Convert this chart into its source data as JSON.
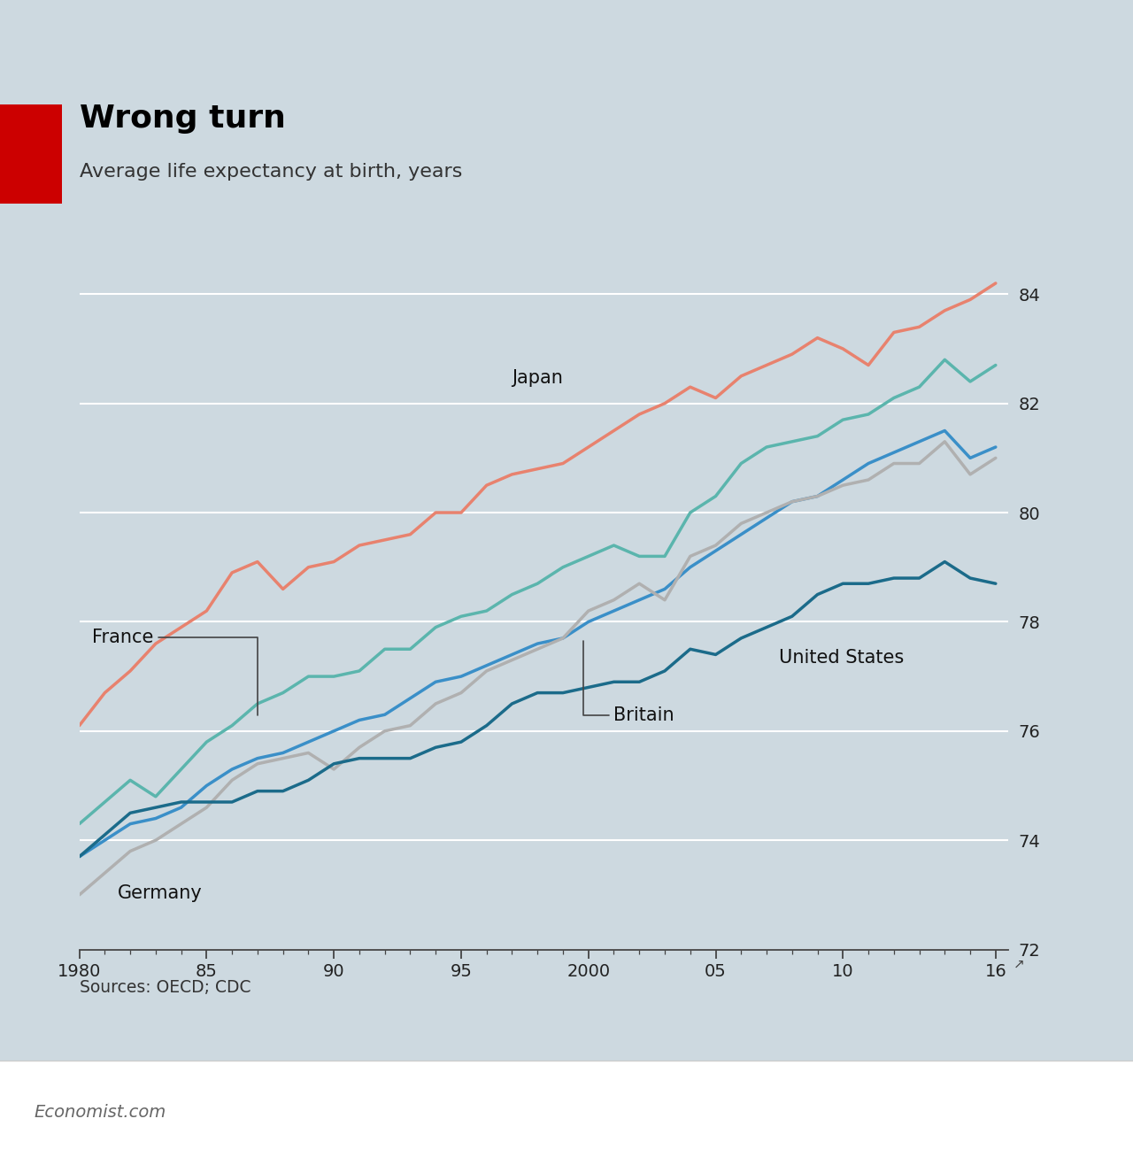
{
  "title": "Wrong turn",
  "subtitle": "Average life expectancy at birth, years",
  "source": "Sources: OECD; CDC",
  "footer": "Economist.com",
  "background_color": "#cdd9e0",
  "plot_bg_color": "#cdd9e0",
  "footer_bg": "#ffffff",
  "title_color": "#000000",
  "subtitle_color": "#333333",
  "source_color": "#333333",
  "footer_color": "#666666",
  "xmin": 1980,
  "xmax": 2016,
  "ymin": 72,
  "ymax": 84.8,
  "yticks": [
    72,
    74,
    76,
    78,
    80,
    82,
    84
  ],
  "xticks": [
    1980,
    1985,
    1990,
    1995,
    2000,
    2005,
    2010,
    2016
  ],
  "xtick_labels": [
    "1980",
    "85",
    "90",
    "95",
    "2000",
    "05",
    "10",
    "16"
  ],
  "series": [
    {
      "name": "Japan",
      "color": "#e8826e",
      "linewidth": 2.5,
      "years": [
        1980,
        1981,
        1982,
        1983,
        1984,
        1985,
        1986,
        1987,
        1988,
        1989,
        1990,
        1991,
        1992,
        1993,
        1994,
        1995,
        1996,
        1997,
        1998,
        1999,
        2000,
        2001,
        2002,
        2003,
        2004,
        2005,
        2006,
        2007,
        2008,
        2009,
        2010,
        2011,
        2012,
        2013,
        2014,
        2015,
        2016
      ],
      "values": [
        76.1,
        76.7,
        77.1,
        77.6,
        77.9,
        78.2,
        78.9,
        79.1,
        78.6,
        79.0,
        79.1,
        79.4,
        79.5,
        79.6,
        80.0,
        80.0,
        80.5,
        80.7,
        80.8,
        80.9,
        81.2,
        81.5,
        81.8,
        82.0,
        82.3,
        82.1,
        82.5,
        82.7,
        82.9,
        83.2,
        83.0,
        82.7,
        83.3,
        83.4,
        83.7,
        83.9,
        84.2
      ]
    },
    {
      "name": "France",
      "color": "#5bb5ad",
      "linewidth": 2.5,
      "years": [
        1980,
        1981,
        1982,
        1983,
        1984,
        1985,
        1986,
        1987,
        1988,
        1989,
        1990,
        1991,
        1992,
        1993,
        1994,
        1995,
        1996,
        1997,
        1998,
        1999,
        2000,
        2001,
        2002,
        2003,
        2004,
        2005,
        2006,
        2007,
        2008,
        2009,
        2010,
        2011,
        2012,
        2013,
        2014,
        2015,
        2016
      ],
      "values": [
        74.3,
        74.7,
        75.1,
        74.8,
        75.3,
        75.8,
        76.1,
        76.5,
        76.7,
        77.0,
        77.0,
        77.1,
        77.5,
        77.5,
        77.9,
        78.1,
        78.2,
        78.5,
        78.7,
        79.0,
        79.2,
        79.4,
        79.2,
        79.2,
        80.0,
        80.3,
        80.9,
        81.2,
        81.3,
        81.4,
        81.7,
        81.8,
        82.1,
        82.3,
        82.8,
        82.4,
        82.7
      ]
    },
    {
      "name": "Britain",
      "color": "#3a8fc8",
      "linewidth": 2.5,
      "years": [
        1980,
        1981,
        1982,
        1983,
        1984,
        1985,
        1986,
        1987,
        1988,
        1989,
        1990,
        1991,
        1992,
        1993,
        1994,
        1995,
        1996,
        1997,
        1998,
        1999,
        2000,
        2001,
        2002,
        2003,
        2004,
        2005,
        2006,
        2007,
        2008,
        2009,
        2010,
        2011,
        2012,
        2013,
        2014,
        2015,
        2016
      ],
      "values": [
        73.7,
        74.0,
        74.3,
        74.4,
        74.6,
        75.0,
        75.3,
        75.5,
        75.6,
        75.8,
        76.0,
        76.2,
        76.3,
        76.6,
        76.9,
        77.0,
        77.2,
        77.4,
        77.6,
        77.7,
        78.0,
        78.2,
        78.4,
        78.6,
        79.0,
        79.3,
        79.6,
        79.9,
        80.2,
        80.3,
        80.6,
        80.9,
        81.1,
        81.3,
        81.5,
        81.0,
        81.2
      ]
    },
    {
      "name": "Germany",
      "color": "#b0b0b0",
      "linewidth": 2.5,
      "years": [
        1980,
        1981,
        1982,
        1983,
        1984,
        1985,
        1986,
        1987,
        1988,
        1989,
        1990,
        1991,
        1992,
        1993,
        1994,
        1995,
        1996,
        1997,
        1998,
        1999,
        2000,
        2001,
        2002,
        2003,
        2004,
        2005,
        2006,
        2007,
        2008,
        2009,
        2010,
        2011,
        2012,
        2013,
        2014,
        2015,
        2016
      ],
      "values": [
        73.0,
        73.4,
        73.8,
        74.0,
        74.3,
        74.6,
        75.1,
        75.4,
        75.5,
        75.6,
        75.3,
        75.7,
        76.0,
        76.1,
        76.5,
        76.7,
        77.1,
        77.3,
        77.5,
        77.7,
        78.2,
        78.4,
        78.7,
        78.4,
        79.2,
        79.4,
        79.8,
        80.0,
        80.2,
        80.3,
        80.5,
        80.6,
        80.9,
        80.9,
        81.3,
        80.7,
        81.0
      ]
    },
    {
      "name": "United States",
      "color": "#1b6b8a",
      "linewidth": 2.5,
      "years": [
        1980,
        1981,
        1982,
        1983,
        1984,
        1985,
        1986,
        1987,
        1988,
        1989,
        1990,
        1991,
        1992,
        1993,
        1994,
        1995,
        1996,
        1997,
        1998,
        1999,
        2000,
        2001,
        2002,
        2003,
        2004,
        2005,
        2006,
        2007,
        2008,
        2009,
        2010,
        2011,
        2012,
        2013,
        2014,
        2015,
        2016
      ],
      "values": [
        73.7,
        74.1,
        74.5,
        74.6,
        74.7,
        74.7,
        74.7,
        74.9,
        74.9,
        75.1,
        75.4,
        75.5,
        75.5,
        75.5,
        75.7,
        75.8,
        76.1,
        76.5,
        76.7,
        76.7,
        76.8,
        76.9,
        76.9,
        77.1,
        77.5,
        77.4,
        77.7,
        77.9,
        78.1,
        78.5,
        78.7,
        78.7,
        78.8,
        78.8,
        79.1,
        78.8,
        78.7
      ]
    }
  ]
}
